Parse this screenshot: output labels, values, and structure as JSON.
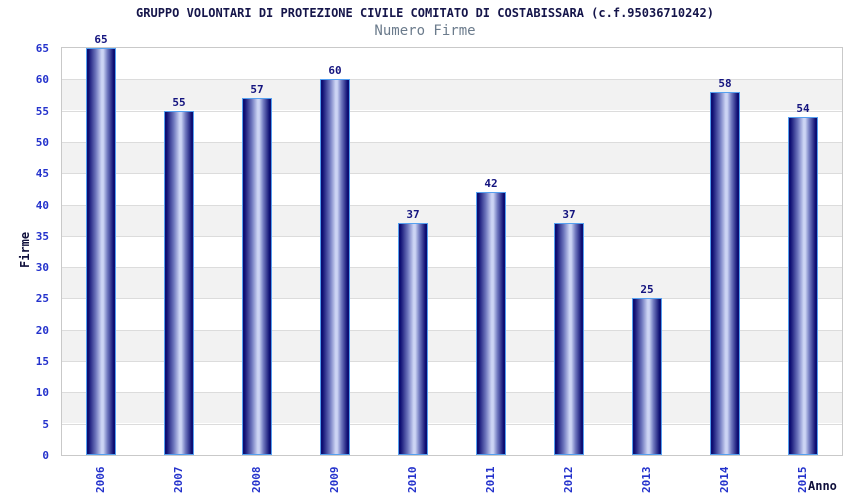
{
  "chart_data": {
    "type": "bar",
    "title": "GRUPPO VOLONTARI DI PROTEZIONE CIVILE COMITATO DI COSTABISSARA (c.f.95036710242)",
    "subtitle": "Numero Firme",
    "xlabel": "Anno",
    "ylabel": "Firme",
    "categories": [
      "2006",
      "2007",
      "2008",
      "2009",
      "2010",
      "2011",
      "2012",
      "2013",
      "2014",
      "2015"
    ],
    "values": [
      65,
      55,
      57,
      60,
      37,
      42,
      37,
      25,
      58,
      54
    ],
    "ylim": [
      0,
      65
    ],
    "ytick_step": 5,
    "grid": true,
    "legend": "none",
    "band_shading": "alternating horizontal bands every 5 units, white and light gray",
    "colors": {
      "title": "#15154a",
      "subtitle": "#6b7b8c",
      "axis_title": "#10103c",
      "tick_label": "#2432cc",
      "value_label": "#14147f",
      "bar_dark": "#0d0d72",
      "bar_mid": "#7079bf",
      "bar_light": "#ccd4f4",
      "bar_border": "#55a0f0",
      "band_white": "#ffffff",
      "band_gray": "#f2f2f2",
      "gridline": "#dcdcdc",
      "plot_border": "#c9c9c9",
      "background": "#ffffff"
    }
  }
}
